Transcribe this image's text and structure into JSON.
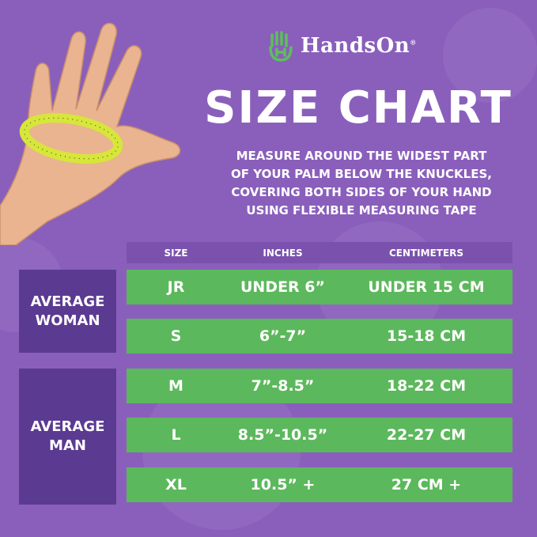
{
  "brand": {
    "name": "HandsOn",
    "registered": "®",
    "logo_color": "#5cbf5a"
  },
  "title": "SIZE CHART",
  "instructions": [
    "MEASURE AROUND THE WIDEST PART",
    "OF YOUR PALM BELOW THE KNUCKLES,",
    "COVERING BOTH SIDES OF YOUR HAND",
    "USING FLEXIBLE MEASURING TAPE"
  ],
  "table": {
    "headers": [
      "SIZE",
      "INCHES",
      "CENTIMETERS"
    ],
    "groups": [
      {
        "label": "AVERAGE WOMAN"
      },
      {
        "label": "AVERAGE MAN"
      }
    ],
    "rows": [
      {
        "size": "JR",
        "inches": "UNDER 6”",
        "cm": "UNDER 15 CM"
      },
      {
        "size": "S",
        "inches": "6”-7”",
        "cm": "15-18 CM"
      },
      {
        "size": "M",
        "inches": "7”-8.5”",
        "cm": "18-22 CM"
      },
      {
        "size": "L",
        "inches": "8.5”-10.5”",
        "cm": "22-27 CM"
      },
      {
        "size": "XL",
        "inches": "10.5” +",
        "cm": "27 CM +"
      }
    ]
  },
  "colors": {
    "background": "#8a5fbb",
    "row": "#5cb85c",
    "group": "#5b3a92",
    "header": "#7a52ad"
  }
}
